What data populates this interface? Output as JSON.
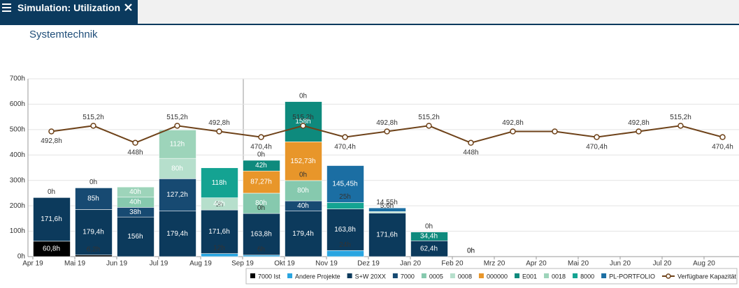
{
  "header": {
    "title": "Simulation: Utilization"
  },
  "chart_data": {
    "type": "bar",
    "stacked": true,
    "title": "Systemtechnik",
    "categories": [
      "Apr 19",
      "Mai 19",
      "Jun 19",
      "Jul 19",
      "Aug 19",
      "Sep 19",
      "Okt 19",
      "Nov 19",
      "Dez 19",
      "Jan 20",
      "Feb 20",
      "Mrz 20",
      "Apr 20",
      "Mai 20",
      "Jun 20",
      "Jul 20",
      "Aug 20"
    ],
    "ylim": [
      0,
      700
    ],
    "yticks": [
      {
        "value": 0,
        "label": "0h"
      },
      {
        "value": 100,
        "label": "100h"
      },
      {
        "value": 200,
        "label": "200h"
      },
      {
        "value": 300,
        "label": "300h"
      },
      {
        "value": 400,
        "label": "400h"
      },
      {
        "value": 500,
        "label": "500h"
      },
      {
        "value": 600,
        "label": "600h"
      },
      {
        "value": 700,
        "label": "700h"
      }
    ],
    "grid": true,
    "legend": "bottom-right",
    "series": [
      {
        "name": "7000 Ist",
        "color": "#000000",
        "values": [
          60.8,
          6.2,
          null,
          null,
          null,
          null,
          null,
          null,
          null,
          null,
          null,
          null,
          null,
          null,
          null,
          null,
          null
        ],
        "value_labels": [
          "60,8h",
          "6,2h",
          null,
          null,
          null,
          null,
          null,
          null,
          null,
          null,
          null,
          null,
          null,
          null,
          null,
          null,
          null
        ]
      },
      {
        "name": "Andere Projekte",
        "color": "#2aa5e0",
        "values": [
          null,
          null,
          null,
          null,
          12,
          6,
          null,
          24,
          null,
          null,
          null,
          null,
          null,
          null,
          null,
          null,
          null
        ],
        "value_labels": [
          null,
          null,
          null,
          null,
          "12h",
          "6h",
          null,
          "24h",
          null,
          null,
          null,
          null,
          null,
          null,
          null,
          null,
          null
        ]
      },
      {
        "name": "S+W 20XX",
        "color": "#0c3a5c",
        "values": [
          171.6,
          179.4,
          156,
          179.4,
          171.6,
          163.8,
          179.4,
          163.8,
          171.6,
          62.4,
          0,
          null,
          null,
          null,
          null,
          null,
          null
        ],
        "value_labels": [
          "171,6h",
          "179,4h",
          "156h",
          "179,4h",
          "171,6h",
          "163,8h",
          "179,4h",
          "163,8h",
          "171,6h",
          "62,4h",
          "0h",
          null,
          null,
          null,
          null,
          null,
          null
        ]
      },
      {
        "name": "7000",
        "color": "#174a72",
        "values": [
          null,
          85,
          38,
          127.2,
          null,
          0,
          40,
          null,
          null,
          null,
          null,
          null,
          null,
          null,
          null,
          null,
          null
        ],
        "value_labels": [
          null,
          "85h",
          "38h",
          "127,2h",
          null,
          "0h",
          "40h",
          null,
          null,
          null,
          null,
          null,
          null,
          null,
          null,
          null,
          null
        ]
      },
      {
        "name": "0005",
        "color": "#86c9ae",
        "values": [
          null,
          null,
          40,
          null,
          0,
          80,
          80,
          null,
          null,
          null,
          null,
          null,
          null,
          null,
          null,
          null,
          null
        ],
        "value_labels": [
          null,
          null,
          "40h",
          null,
          "0h",
          "80h",
          "80h",
          null,
          null,
          null,
          null,
          null,
          null,
          null,
          null,
          null,
          null
        ]
      },
      {
        "name": "0008",
        "color": "#b6dfcc",
        "values": [
          null,
          null,
          null,
          80,
          48,
          null,
          0,
          null,
          5.6,
          null,
          null,
          null,
          null,
          null,
          null,
          null,
          null
        ],
        "value_labels": [
          null,
          null,
          null,
          "80h",
          "48h",
          null,
          "0h",
          null,
          "5,6h",
          null,
          null,
          null,
          null,
          null,
          null,
          null,
          null
        ]
      },
      {
        "name": "000000",
        "color": "#e8962a",
        "values": [
          null,
          null,
          null,
          null,
          null,
          87.27,
          152.73,
          null,
          null,
          null,
          null,
          null,
          null,
          null,
          null,
          null,
          null
        ],
        "value_labels": [
          null,
          null,
          null,
          null,
          null,
          "87,27h",
          "152,73h",
          null,
          null,
          null,
          null,
          null,
          null,
          null,
          null,
          null,
          null
        ]
      },
      {
        "name": "E001",
        "color": "#0e8a7d",
        "values": [
          null,
          null,
          null,
          null,
          null,
          42,
          158,
          null,
          null,
          34.4,
          null,
          null,
          null,
          null,
          null,
          null,
          null
        ],
        "value_labels": [
          null,
          null,
          null,
          null,
          null,
          "42h",
          "158h",
          null,
          null,
          "34,4h",
          null,
          null,
          null,
          null,
          null,
          null,
          null
        ]
      },
      {
        "name": "0018",
        "color": "#9dd4ba",
        "values": [
          null,
          null,
          40,
          112,
          null,
          null,
          null,
          null,
          null,
          null,
          null,
          null,
          null,
          null,
          null,
          null,
          null
        ],
        "value_labels": [
          null,
          null,
          "40h",
          "112h",
          null,
          null,
          null,
          null,
          null,
          null,
          null,
          null,
          null,
          null,
          null,
          null,
          null
        ]
      },
      {
        "name": "8000",
        "color": "#14a392",
        "values": [
          null,
          null,
          null,
          null,
          118,
          null,
          null,
          25,
          null,
          null,
          null,
          null,
          null,
          null,
          null,
          null,
          null
        ],
        "value_labels": [
          null,
          null,
          null,
          null,
          "118h",
          null,
          null,
          "25h",
          null,
          null,
          null,
          null,
          null,
          null,
          null,
          null,
          null
        ]
      },
      {
        "name": "PL-PORTFOLIO",
        "color": "#1b6ea3",
        "values": [
          0,
          0,
          null,
          null,
          null,
          0,
          0,
          145.45,
          14.55,
          0,
          0,
          null,
          null,
          null,
          null,
          null,
          null
        ],
        "value_labels": [
          "0h",
          "0h",
          null,
          null,
          null,
          "0h",
          "0h",
          "145,45h",
          "14,55h",
          "0h",
          "0h",
          null,
          null,
          null,
          null,
          null,
          null
        ]
      },
      {
        "name": "Verfügbare Kapazität",
        "type": "line",
        "color": "#6e4219",
        "values": [
          492.8,
          515.2,
          448,
          515.2,
          492.8,
          470.4,
          515.2,
          470.4,
          492.8,
          515.2,
          448,
          492.8,
          492.8,
          470.4,
          492.8,
          515.2,
          470.4
        ],
        "value_labels": [
          "492,8h",
          "515,2h",
          "448h",
          "515,2h",
          "492,8h",
          "470,4h",
          "515,2h",
          "470,4h",
          "492,8h",
          "515,2h",
          "448h",
          "492,8h",
          null,
          "470,4h",
          "492,8h",
          "515,2h",
          "470,4h"
        ]
      }
    ]
  }
}
